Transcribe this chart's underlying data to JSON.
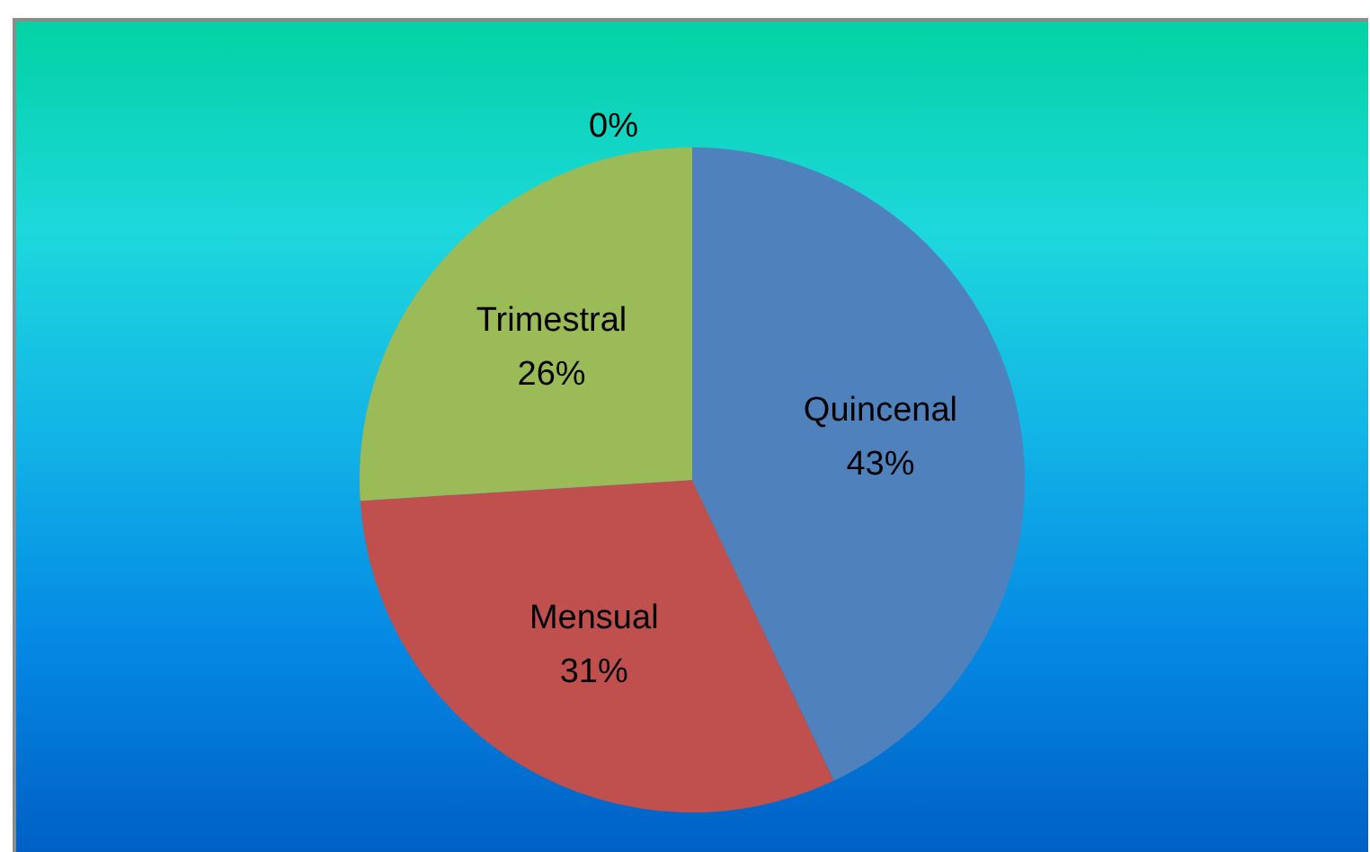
{
  "chart_data": {
    "type": "pie",
    "categories": [
      "Quincenal",
      "Mensual",
      "Trimestral",
      null
    ],
    "values": [
      43,
      31,
      26,
      0
    ],
    "colors": [
      "#4f81bd",
      "#c0504d",
      "#9bbb59",
      "#8064a2"
    ],
    "value_labels": [
      "43%",
      "31%",
      "26%",
      "0%"
    ]
  }
}
